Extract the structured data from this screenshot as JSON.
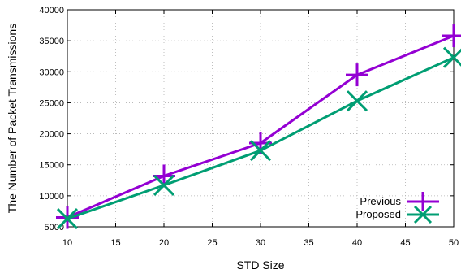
{
  "chart_data": {
    "type": "line",
    "xlabel": "STD Size",
    "ylabel": "The Number of Packet Transmissions",
    "xlim": [
      10,
      50
    ],
    "ylim": [
      5000,
      40000
    ],
    "xticks": [
      10,
      15,
      20,
      25,
      30,
      35,
      40,
      45,
      50
    ],
    "yticks": [
      5000,
      10000,
      15000,
      20000,
      25000,
      30000,
      35000,
      40000
    ],
    "grid": true,
    "legend_position": "bottom-right",
    "x": [
      10,
      20,
      30,
      40,
      50
    ],
    "series": [
      {
        "name": "Previous",
        "values": [
          6500,
          13200,
          18500,
          29500,
          35800
        ],
        "color": "#9400d3",
        "marker": "plus"
      },
      {
        "name": "Proposed",
        "values": [
          6300,
          11700,
          17300,
          25300,
          32300
        ],
        "color": "#009e73",
        "marker": "cross"
      }
    ]
  }
}
